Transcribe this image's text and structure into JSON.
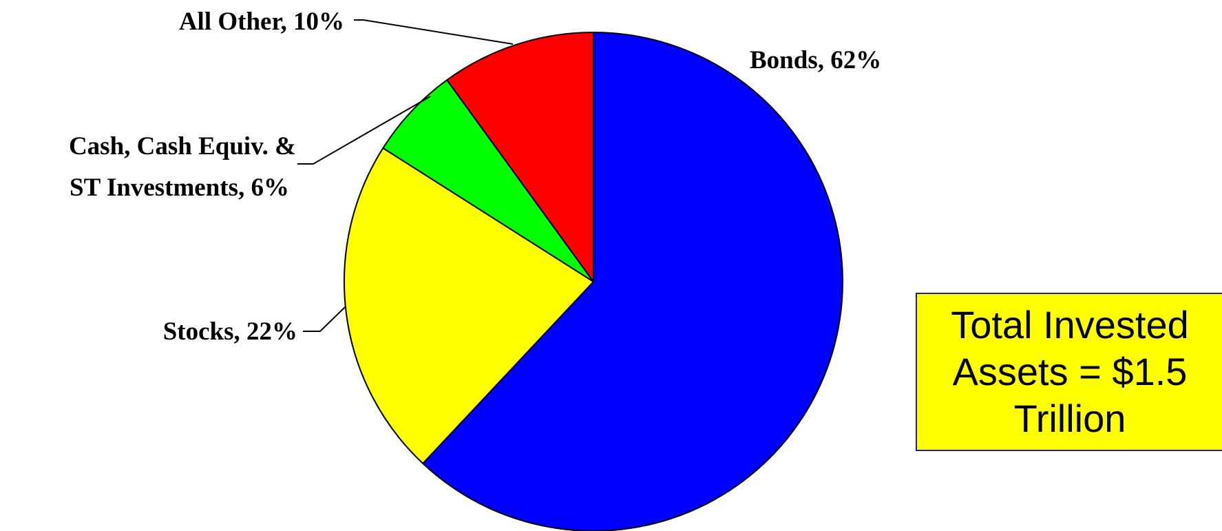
{
  "chart_data": {
    "type": "pie",
    "slices": [
      {
        "label": "Bonds",
        "value": 62,
        "color": "#0000ff",
        "label_text": "Bonds, 62%"
      },
      {
        "label": "Stocks",
        "value": 22,
        "color": "#ffff00",
        "label_text": "Stocks, 22%"
      },
      {
        "label": "Cash, Cash Equiv. & ST Investments",
        "value": 6,
        "color": "#00ff00",
        "label_lines": [
          "Cash, Cash Equiv. &",
          "ST Investments, 6%"
        ]
      },
      {
        "label": "All Other",
        "value": 10,
        "color": "#ff0000",
        "label_text": "All Other, 10%"
      }
    ]
  },
  "callout": {
    "lines": [
      "Total Invested",
      "Assets = $1.5",
      "Trillion"
    ],
    "background": "#ffff00",
    "border_color": "#1f1fa8"
  }
}
